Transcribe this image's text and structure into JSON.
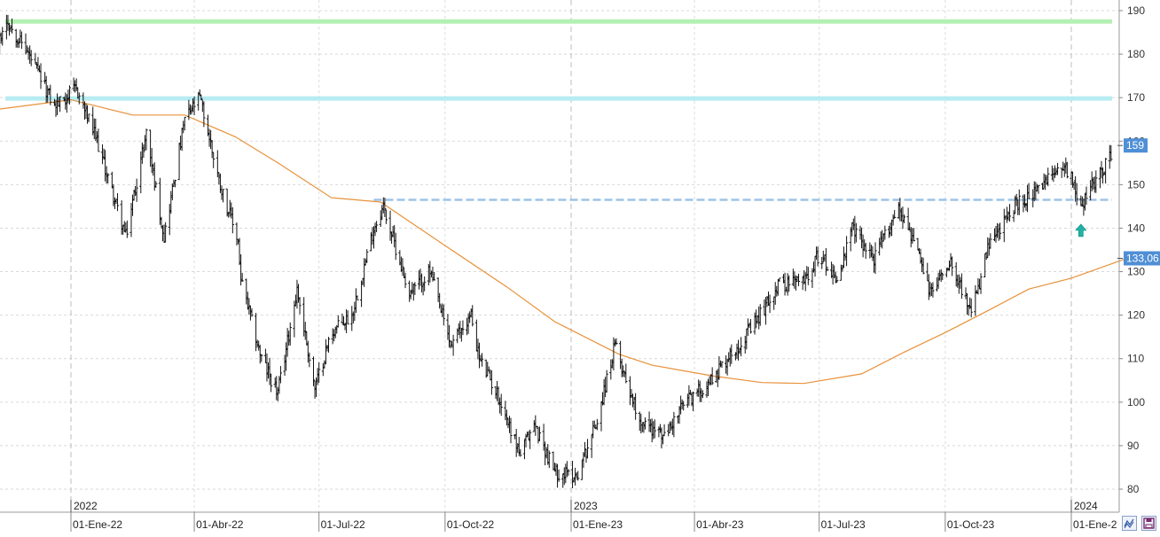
{
  "chart_data": {
    "type": "bar",
    "subtype": "ohlc",
    "title": "",
    "xlabel": "",
    "ylabel": "",
    "ylim": [
      78,
      193
    ],
    "y_axis_position": "right",
    "y_ticks": [
      "190",
      "180",
      "170",
      "160",
      "150",
      "140",
      "130",
      "120",
      "110",
      "100",
      "90",
      "80"
    ],
    "grid": true,
    "x_axis": {
      "year_labels": [
        "2022",
        "2023",
        "2024"
      ],
      "date_labels": [
        "01-Ene-22",
        "01-Abr-22",
        "01-Jul-22",
        "01-Oct-22",
        "01-Ene-23",
        "01-Abr-23",
        "01-Jul-23",
        "01-Oct-23",
        "01-Ene-2"
      ],
      "start_date": "2021-11-01",
      "end_date": "2024-02-15"
    },
    "price_path": [
      [
        "2021-11-01",
        175
      ],
      [
        "2021-11-15",
        188
      ],
      [
        "2021-12-01",
        180
      ],
      [
        "2021-12-20",
        168
      ],
      [
        "2022-01-05",
        172
      ],
      [
        "2022-01-20",
        160
      ],
      [
        "2022-02-10",
        138
      ],
      [
        "2022-02-25",
        162
      ],
      [
        "2022-03-10",
        138
      ],
      [
        "2022-03-25",
        165
      ],
      [
        "2022-04-05",
        170
      ],
      [
        "2022-04-20",
        150
      ],
      [
        "2022-05-03",
        137
      ],
      [
        "2022-05-05",
        128
      ],
      [
        "2022-05-20",
        110
      ],
      [
        "2022-06-01",
        102
      ],
      [
        "2022-06-15",
        126
      ],
      [
        "2022-06-28",
        103
      ],
      [
        "2022-07-10",
        116
      ],
      [
        "2022-07-25",
        120
      ],
      [
        "2022-08-10",
        140
      ],
      [
        "2022-08-17",
        145
      ],
      [
        "2022-09-05",
        125
      ],
      [
        "2022-09-20",
        130
      ],
      [
        "2022-10-05",
        113
      ],
      [
        "2022-10-20",
        120
      ],
      [
        "2022-10-26",
        110
      ],
      [
        "2022-11-08",
        102
      ],
      [
        "2022-11-25",
        88
      ],
      [
        "2022-12-05",
        95
      ],
      [
        "2022-12-20",
        84
      ],
      [
        "2023-01-05",
        83
      ],
      [
        "2023-01-20",
        96
      ],
      [
        "2023-02-02",
        113
      ],
      [
        "2023-02-20",
        96
      ],
      [
        "2023-03-10",
        92
      ],
      [
        "2023-03-25",
        100
      ],
      [
        "2023-04-10",
        104
      ],
      [
        "2023-04-25",
        110
      ],
      [
        "2023-05-15",
        118
      ],
      [
        "2023-06-01",
        127
      ],
      [
        "2023-06-20",
        128
      ],
      [
        "2023-07-01",
        134
      ],
      [
        "2023-07-15",
        128
      ],
      [
        "2023-07-25",
        140
      ],
      [
        "2023-08-10",
        133
      ],
      [
        "2023-08-28",
        145
      ],
      [
        "2023-09-08",
        137
      ],
      [
        "2023-09-20",
        125
      ],
      [
        "2023-10-05",
        133
      ],
      [
        "2023-10-20",
        120
      ],
      [
        "2023-11-01",
        135
      ],
      [
        "2023-11-20",
        145
      ],
      [
        "2023-12-10",
        149
      ],
      [
        "2023-12-25",
        155
      ],
      [
        "2024-01-01",
        152
      ],
      [
        "2024-01-08",
        145
      ],
      [
        "2024-01-20",
        152
      ],
      [
        "2024-02-05",
        159
      ]
    ],
    "overlays": {
      "moving_average": {
        "color": "#e8913a",
        "values": [
          [
            "2021-11-01",
            167
          ],
          [
            "2022-01-01",
            169.5
          ],
          [
            "2022-02-15",
            166
          ],
          [
            "2022-03-25",
            166
          ],
          [
            "2022-05-01",
            161
          ],
          [
            "2022-06-01",
            155
          ],
          [
            "2022-07-10",
            147
          ],
          [
            "2022-08-15",
            146
          ],
          [
            "2022-10-01",
            136
          ],
          [
            "2022-11-15",
            126.5
          ],
          [
            "2022-12-20",
            118.5
          ],
          [
            "2023-02-05",
            111
          ],
          [
            "2023-03-01",
            108.5
          ],
          [
            "2023-04-15",
            106
          ],
          [
            "2023-05-20",
            104.5
          ],
          [
            "2023-06-20",
            104.3
          ],
          [
            "2023-08-01",
            106.5
          ],
          [
            "2023-09-01",
            111.5
          ],
          [
            "2023-10-01",
            116
          ],
          [
            "2023-11-01",
            121
          ],
          [
            "2023-12-01",
            126
          ],
          [
            "2024-01-01",
            128.5
          ],
          [
            "2024-02-10",
            133
          ]
        ]
      },
      "horizontal_lines": [
        {
          "y": 187.5,
          "color": "#b4f0b4",
          "style": "solid"
        },
        {
          "y": 169.8,
          "color": "#b7ecf2",
          "style": "solid"
        },
        {
          "y": 146.5,
          "color": "#9dc3e6",
          "style": "dashed",
          "from": "2022-08-10"
        }
      ],
      "marker": {
        "date": "2024-01-08",
        "y": 139.5,
        "icon": "up-arrow-icon",
        "color": "#1fb3a5"
      }
    },
    "value_labels": [
      {
        "y": 159,
        "text": "159",
        "bg": "#4f8fd6"
      },
      {
        "y": 133.06,
        "text": "133,06",
        "bg": "#4f8fd6"
      }
    ]
  }
}
